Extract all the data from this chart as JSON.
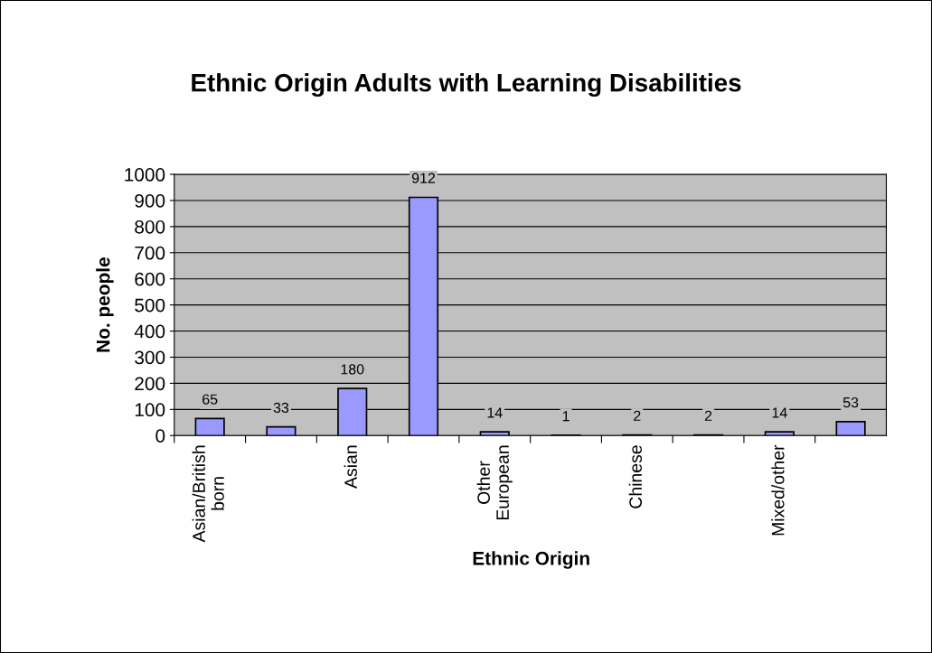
{
  "chart_data": {
    "type": "bar",
    "title": "Ethnic Origin Adults with Learning Disabilities",
    "xlabel": "Ethnic Origin",
    "ylabel": "No. people",
    "categories": [
      "Asian/British\nborn",
      null,
      "Asian",
      null,
      "Other\nEuropean",
      null,
      "Chinese",
      null,
      "Mixed/other",
      null
    ],
    "values": [
      65,
      33,
      180,
      912,
      14,
      1,
      2,
      2,
      14,
      53
    ],
    "color": "#9999ff",
    "ylim": [
      0,
      1000
    ],
    "yticks": [
      0,
      100,
      200,
      300,
      400,
      500,
      600,
      700,
      800,
      900,
      1000
    ],
    "grid": "y",
    "data_labels": true,
    "legend": false
  }
}
